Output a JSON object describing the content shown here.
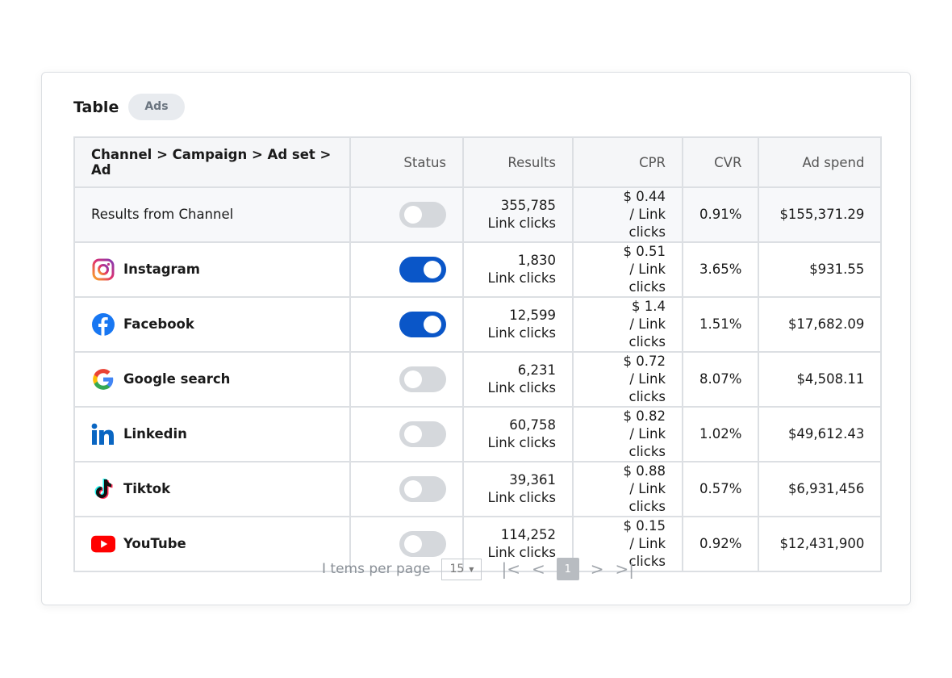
{
  "title": "Table",
  "tab": "Ads",
  "columns": [
    "Channel > Campaign > Ad set > Ad",
    "Status",
    "Results",
    "CPR",
    "CVR",
    "Ad spend"
  ],
  "rows": [
    {
      "name": "Results from Channel",
      "icon": "",
      "status": false,
      "results": "355,785",
      "results_unit": "Link clicks",
      "cpr": "$ 0.44",
      "cpr_unit": "/ Link clicks",
      "cvr": "0.91%",
      "spend": "$155,371.29",
      "summary": true
    },
    {
      "name": "Instagram",
      "icon": "instagram-icon",
      "status": true,
      "results": "1,830",
      "results_unit": "Link clicks",
      "cpr": "$ 0.51",
      "cpr_unit": "/ Link clicks",
      "cvr": "3.65%",
      "spend": "$931.55"
    },
    {
      "name": "Facebook",
      "icon": "facebook-icon",
      "status": true,
      "results": "12,599",
      "results_unit": "Link clicks",
      "cpr": "$ 1.4",
      "cpr_unit": "/ Link clicks",
      "cvr": "1.51%",
      "spend": "$17,682.09"
    },
    {
      "name": "Google search",
      "icon": "google-icon",
      "status": false,
      "results": "6,231",
      "results_unit": "Link clicks",
      "cpr": "$ 0.72",
      "cpr_unit": "/ Link clicks",
      "cvr": "8.07%",
      "spend": "$4,508.11"
    },
    {
      "name": "Linkedin",
      "icon": "linkedin-icon",
      "status": false,
      "results": "60,758",
      "results_unit": "Link clicks",
      "cpr": "$ 0.82",
      "cpr_unit": "/ Link clicks",
      "cvr": "1.02%",
      "spend": "$49,612.43"
    },
    {
      "name": "Tiktok",
      "icon": "tiktok-icon",
      "status": false,
      "results": "39,361",
      "results_unit": "Link clicks",
      "cpr": "$ 0.88",
      "cpr_unit": "/ Link clicks",
      "cvr": "0.57%",
      "spend": "$6,931,456"
    },
    {
      "name": "YouTube",
      "icon": "youtube-icon",
      "status": false,
      "results": "114,252",
      "results_unit": "Link clicks",
      "cpr": "$ 0.15",
      "cpr_unit": "/ Link clicks",
      "cvr": "0.92%",
      "spend": "$12,431,900"
    }
  ],
  "pagination": {
    "items_per_page_label": "I tems per page",
    "items_per_page": "15",
    "current_page": "1"
  },
  "colors": {
    "toggle_on": "#0a56c8",
    "toggle_off": "#d5d8dc"
  }
}
